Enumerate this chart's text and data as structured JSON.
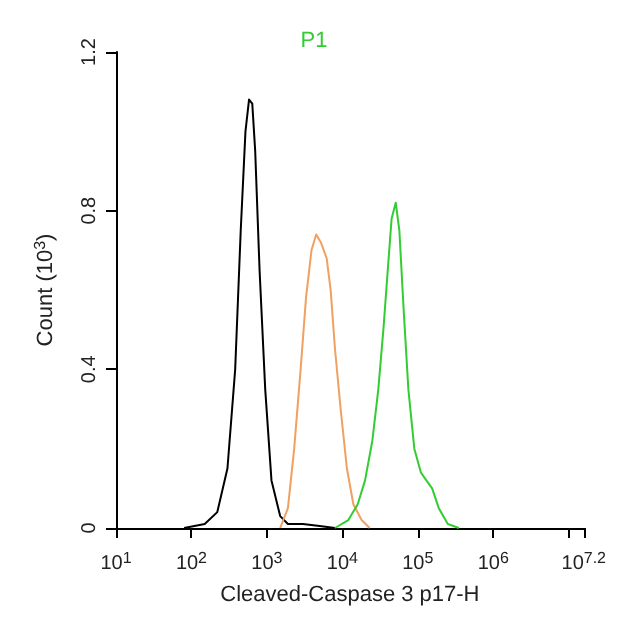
{
  "chart_data": {
    "type": "line",
    "xlabel": "Cleaved-Caspase 3 p17-H",
    "ylabel": "Count (10$^{3}$)",
    "log": "x",
    "xlim": [
      10,
      15848932
    ],
    "xticks": [
      {
        "value": 10,
        "label": "10$^{1}$"
      },
      {
        "value": 100,
        "label": "10$^{2}$"
      },
      {
        "value": 1000,
        "label": "10$^{3}$"
      },
      {
        "value": 10000,
        "label": "10$^{4}$"
      },
      {
        "value": 100000,
        "label": "10$^{5}$"
      },
      {
        "value": 1000000,
        "label": "10$^{6}$"
      },
      {
        "value": 10000000,
        "label": null
      },
      {
        "value": 15848932,
        "label": "10$^{7.2}$"
      }
    ],
    "ylim": [
      0,
      1.2
    ],
    "yticks": [
      0,
      0.4,
      0.8,
      1.2
    ],
    "grid": false,
    "marker": "none",
    "line_style": "solid",
    "series": [
      {
        "color": "#000000",
        "x": [
          80,
          150,
          220,
          300,
          380,
          450,
          520,
          580,
          640,
          700,
          800,
          950,
          1150,
          1500,
          1900,
          3000,
          5000,
          8000
        ],
        "values": [
          0,
          0.01,
          0.04,
          0.15,
          0.4,
          0.75,
          1.0,
          1.08,
          1.07,
          0.95,
          0.65,
          0.35,
          0.12,
          0.03,
          0.01,
          0.01,
          0.005,
          0
        ]
      },
      {
        "color": "#f0a060",
        "x": [
          1500,
          1900,
          2300,
          2800,
          3300,
          3900,
          4500,
          5200,
          6200,
          7000,
          8000,
          9500,
          11500,
          14000,
          18000,
          23000
        ],
        "values": [
          0,
          0.05,
          0.2,
          0.4,
          0.58,
          0.7,
          0.74,
          0.72,
          0.68,
          0.6,
          0.45,
          0.3,
          0.15,
          0.06,
          0.02,
          0
        ]
      },
      {
        "name": "P1",
        "color": "#33cc33",
        "x": [
          8000,
          12000,
          16000,
          20000,
          25000,
          30000,
          35000,
          40000,
          45000,
          51000,
          57000,
          65000,
          75000,
          90000,
          110000,
          130000,
          155000,
          190000,
          250000,
          350000
        ],
        "values": [
          0,
          0.02,
          0.06,
          0.12,
          0.22,
          0.35,
          0.5,
          0.65,
          0.78,
          0.82,
          0.75,
          0.55,
          0.35,
          0.2,
          0.14,
          0.12,
          0.1,
          0.05,
          0.01,
          0
        ]
      }
    ]
  }
}
